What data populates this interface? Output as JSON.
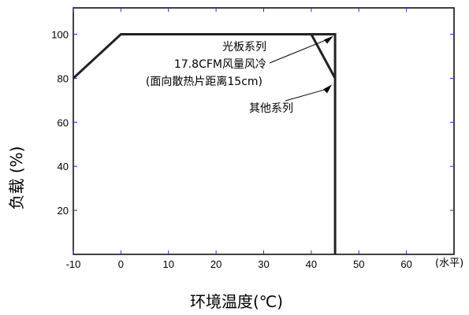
{
  "chart_data": {
    "type": "line",
    "title": "",
    "xlabel": "环境温度(℃)",
    "ylabel": "负载 (%)",
    "x_unit_label": "(水平)",
    "xlim": [
      -10,
      70
    ],
    "ylim": [
      0,
      112
    ],
    "x_ticks": [
      -10,
      0,
      10,
      20,
      30,
      40,
      50,
      60
    ],
    "y_ticks": [
      20,
      40,
      60,
      80,
      100
    ],
    "grid": false,
    "legend": "none",
    "series": [
      {
        "x": [
          -10,
          0,
          45,
          45
        ],
        "y": [
          80,
          100,
          100,
          0
        ]
      },
      {
        "x": [
          40,
          45
        ],
        "y": [
          100,
          80
        ]
      }
    ],
    "annotations": [
      {
        "lines": [
          "光板系列",
          "17.8CFM风量风冷",
          "(面向散热片距离15cm)"
        ],
        "arrow_to": [
          45,
          100
        ]
      },
      {
        "lines": [
          "其他系列"
        ],
        "arrow_to": [
          45,
          80
        ]
      }
    ],
    "colors": {
      "line": "#222222",
      "axis": "#000000",
      "tick_marks": "#2b2bd6"
    }
  }
}
